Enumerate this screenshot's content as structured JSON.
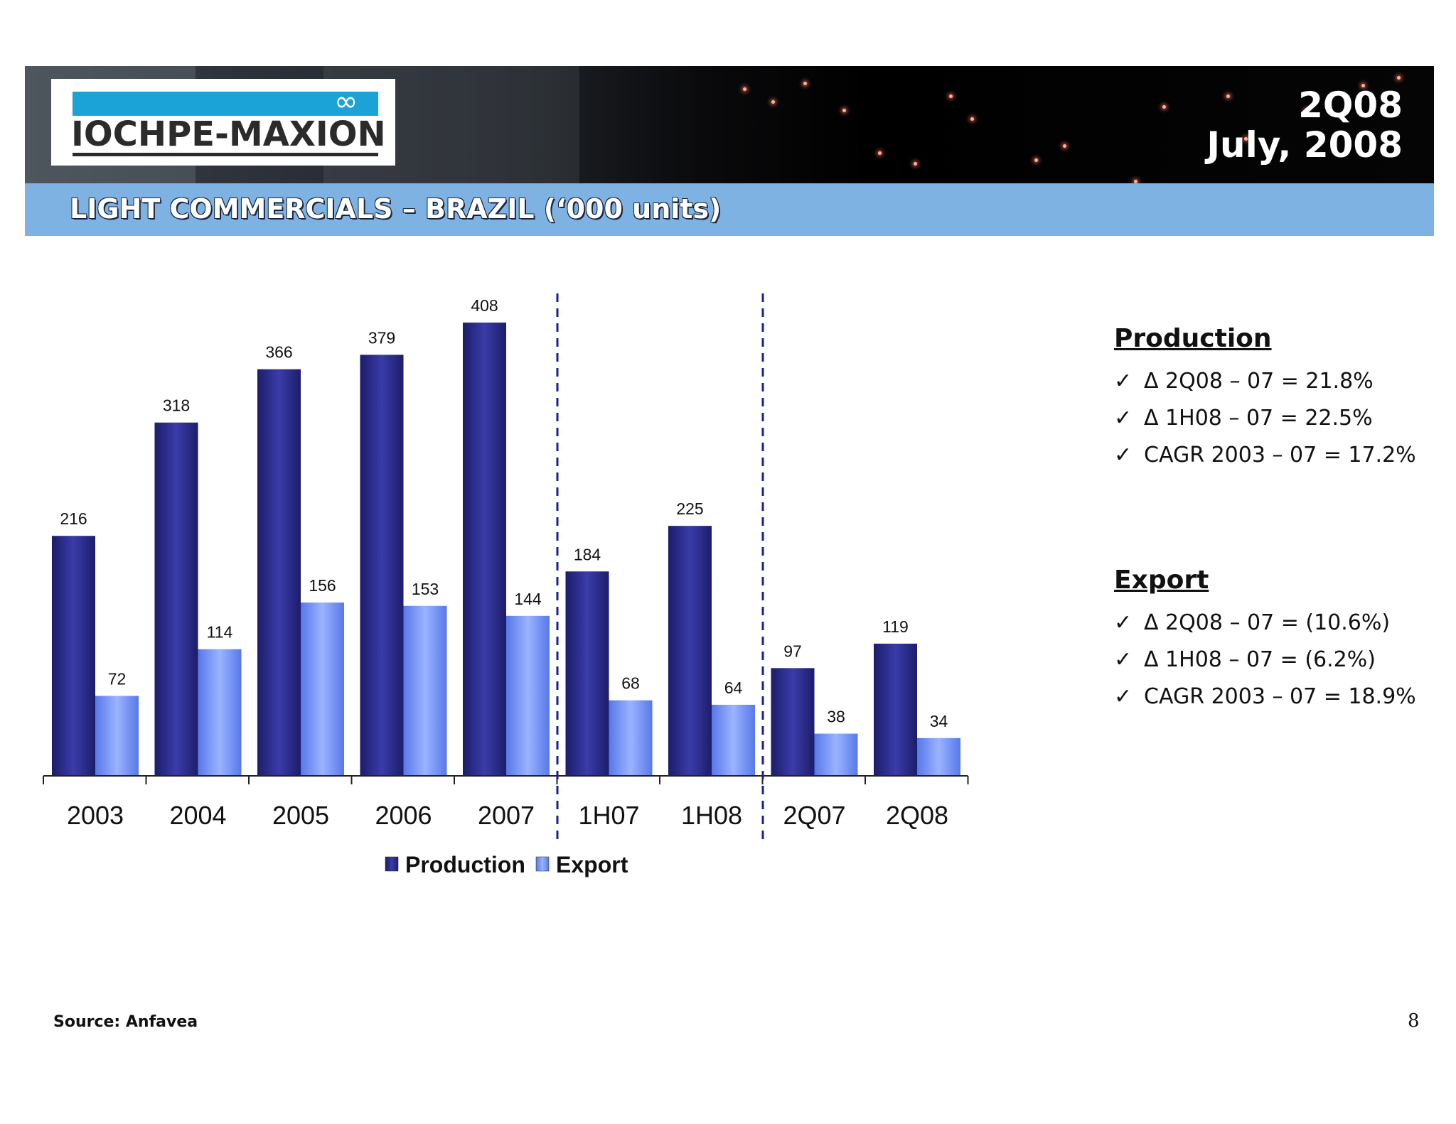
{
  "header": {
    "logo_text": "IOCHPE-MAXION",
    "logo_symbol": "∞",
    "period": "2Q08",
    "date": "July, 2008"
  },
  "title": "LIGHT COMMERCIALS – BRAZIL (‘000 units)",
  "chart_data": {
    "type": "bar",
    "categories": [
      "2003",
      "2004",
      "2005",
      "2006",
      "2007",
      "1H07",
      "1H08",
      "2Q07",
      "2Q08"
    ],
    "series": [
      {
        "name": "Production",
        "values": [
          216,
          318,
          366,
          379,
          408,
          184,
          225,
          97,
          119
        ],
        "color": "#2a2b85"
      },
      {
        "name": "Export",
        "values": [
          72,
          114,
          156,
          153,
          144,
          68,
          64,
          38,
          34
        ],
        "color": "#6e90f5"
      }
    ],
    "ylim": [
      0,
      430
    ],
    "group_separators_after": [
      "2007",
      "1H08"
    ],
    "legend": "bottom"
  },
  "sidebar": {
    "production": {
      "heading": "Production",
      "items": [
        "Δ 2Q08 – 07 = 21.8%",
        "Δ 1H08 – 07 = 22.5%",
        "CAGR 2003 – 07 = 17.2%"
      ]
    },
    "export": {
      "heading": "Export",
      "items": [
        "Δ 2Q08 – 07 = (10.6%)",
        "Δ 1H08 – 07 = (6.2%)",
        "CAGR 2003 – 07 = 18.9%"
      ]
    },
    "check_symbol": "✓"
  },
  "footer": {
    "source": "Source: Anfavea",
    "page": "8"
  }
}
